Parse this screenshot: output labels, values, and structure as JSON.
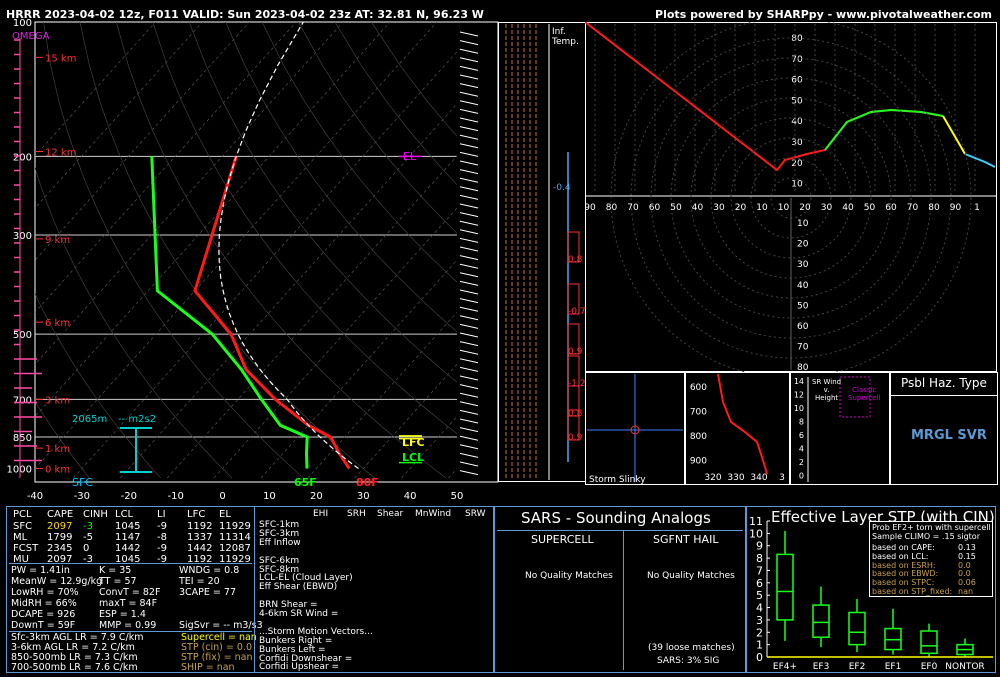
{
  "header": {
    "title": "HRRR 2023-04-02 12z, F011  VALID: Sun 2023-04-02 23z  AT: 32.81 N, 96.23 W",
    "credit": "Plots powered by SHARPpy - www.pivotalweather.com"
  },
  "skewt": {
    "pressure_ticks": [
      "100",
      "200",
      "300",
      "500",
      "700",
      "850",
      "1000"
    ],
    "temp_ticks": [
      "-40",
      "-30",
      "-20",
      "-10",
      "0",
      "10",
      "20",
      "30",
      "40",
      "50"
    ],
    "km_labels": [
      "15 km",
      "12 km",
      "9 km",
      "6 km",
      "3 km",
      "1 km",
      "0 km"
    ],
    "omega": "OMEGA",
    "el": "EL",
    "lfc": "LFC",
    "lcl": "LCL",
    "sfc_dew": "65F",
    "sfc_temp": "80F",
    "sfc": "SFC",
    "eff_height": "2065m",
    "eff_srh": "-- m2s2"
  },
  "inf_temp": {
    "label": "Inf.\nTemp.",
    "values": [
      "-0.4",
      "0.8",
      "-0.7",
      "0.9",
      "-1.2",
      "0.8",
      "0.9"
    ]
  },
  "hodograph_top": {
    "y_ticks": [
      "80",
      "70",
      "60",
      "50",
      "40",
      "30",
      "20",
      "10"
    ]
  },
  "hodograph_mid": {
    "x_ticks": [
      "90",
      "80",
      "70",
      "60",
      "50",
      "40",
      "30",
      "20",
      "10",
      "10",
      "20",
      "30",
      "40",
      "50",
      "60",
      "70",
      "80",
      "90",
      "1"
    ],
    "y_ticks": [
      "10",
      "20",
      "30",
      "40",
      "50",
      "60",
      "70",
      "80"
    ]
  },
  "storm_slinky": {
    "label": "Storm Slinky"
  },
  "theta_panel": {
    "p_ticks": [
      "600",
      "700",
      "800",
      "900"
    ],
    "x_ticks": [
      "320",
      "330",
      "340",
      "3"
    ]
  },
  "sr_wind": {
    "title": "SR Wind\nv.\nHeight",
    "classic": "Classic\nSupercell",
    "y_ticks": [
      "14",
      "12",
      "10",
      "8",
      "6",
      "4",
      "2",
      "0"
    ]
  },
  "hazard": {
    "title": "Psbl Haz. Type",
    "value": "MRGL SVR"
  },
  "parcel_table": {
    "headers": [
      "PCL",
      "CAPE",
      "CINH",
      "LCL",
      "LI",
      "LFC",
      "EL"
    ],
    "rows": [
      [
        "SFC",
        "2097",
        "-3",
        "1045",
        "-9",
        "1192",
        "11929"
      ],
      [
        "ML",
        "1799",
        "-5",
        "1147",
        "-8",
        "1337",
        "11314"
      ],
      [
        "FCST",
        "2345",
        "0",
        "1442",
        "-9",
        "1442",
        "12087"
      ],
      [
        "MU",
        "2097",
        "-3",
        "1045",
        "-9",
        "1192",
        "11929"
      ]
    ]
  },
  "indices": {
    "col1": [
      "PW = 1.41in",
      "MeanW = 12.9g/kg",
      "LowRH = 70%",
      "MidRH = 66%",
      "DCAPE = 926",
      "DownT = 59F"
    ],
    "col2": [
      "K = 35",
      "TT = 57",
      "ConvT = 82F",
      "maxT = 84F",
      "ESP = 1.4",
      "MMP = 0.99"
    ],
    "col3": [
      "WNDG = 0.8",
      "TEI = 20",
      "3CAPE = 77",
      "",
      "",
      "SigSvr = -- m3/s3"
    ]
  },
  "lapse": [
    "Sfc-3km AGL LR = 7.9 C/km",
    "3-6km AGL LR = 7.2 C/km",
    "850-500mb LR = 7.3 C/km",
    "700-500mb LR = 7.6 C/km"
  ],
  "composite": [
    "Supercell = nan",
    "STP (cin) = 0.0",
    "STP (fix) = nan",
    "SHIP = nan"
  ],
  "kinematics": {
    "headers": [
      "EHI",
      "SRH",
      "Shear",
      "MnWind",
      "SRW"
    ],
    "rows": [
      "SFC-1km",
      "SFC-3km",
      "Eff Inflow",
      "",
      "SFC-6km",
      "SFC-8km",
      "LCL-EL (Cloud Layer)",
      "Eff Shear (EBWD)",
      "",
      "BRN Shear =",
      "4-6km SR Wind =",
      "",
      "...Storm Motion Vectors...",
      "Bunkers Right =",
      "Bunkers Left =",
      "Corfidi Downshear =",
      "Corfidi Upshear ="
    ]
  },
  "sars": {
    "title": "SARS - Sounding Analogs",
    "supercell": "SUPERCELL",
    "hail": "SGFNT HAIL",
    "sup_msg": "No Quality Matches",
    "hail_msg": "No Quality Matches",
    "loose": "(39 loose matches)",
    "sig": "SARS: 3% SIG"
  },
  "stp": {
    "title": "Effective Layer STP (with CIN)",
    "prob_title": "Prob EF2+ torn with supercell",
    "climo": "Sample CLIMO = .15 sigtor",
    "lines": [
      {
        "label": "based on CAPE:",
        "val": "0.13"
      },
      {
        "label": "based on LCL:",
        "val": "0.15"
      },
      {
        "label": "based on ESRH:",
        "val": "0.0"
      },
      {
        "label": "based on EBWD:",
        "val": "0.0"
      },
      {
        "label": "based on STPC:",
        "val": "0.06"
      },
      {
        "label": "based on STP_fixed:",
        "val": "nan"
      }
    ],
    "y_ticks": [
      "11",
      "10",
      "9",
      "8",
      "7",
      "6",
      "5",
      "4",
      "3",
      "2",
      "1",
      "0"
    ]
  },
  "chart_data": [
    {
      "type": "line",
      "title": "",
      "series": [
        {
          "name": "temperature",
          "x_degC": [
            27,
            22,
            17,
            10,
            -2,
            -14,
            -24,
            -40,
            -57
          ],
          "p_hpa": [
            1000,
            925,
            850,
            800,
            700,
            600,
            500,
            400,
            200
          ]
        },
        {
          "name": "dewpoint",
          "x_degC": [
            18,
            15,
            12,
            4,
            -5,
            -15,
            -28,
            -48,
            -75
          ],
          "p_hpa": [
            1000,
            925,
            850,
            800,
            700,
            600,
            500,
            400,
            200
          ]
        }
      ],
      "xlim": [
        -40,
        50
      ],
      "ylim_hpa": [
        1000,
        100
      ],
      "log_scale_y": true
    },
    {
      "type": "box",
      "title": "Effective Layer STP (with CIN)",
      "categories": [
        "EF4+",
        "EF3",
        "EF2",
        "EF1",
        "EF0",
        "NONTOR"
      ],
      "boxes": [
        {
          "lo": 1.3,
          "q1": 3.0,
          "med": 5.3,
          "q3": 8.3,
          "hi": 10.2
        },
        {
          "lo": 0.8,
          "q1": 1.6,
          "med": 2.8,
          "q3": 4.2,
          "hi": 5.7
        },
        {
          "lo": 0.4,
          "q1": 1.0,
          "med": 2.0,
          "q3": 3.6,
          "hi": 4.7
        },
        {
          "lo": 0.2,
          "q1": 0.6,
          "med": 1.4,
          "q3": 2.3,
          "hi": 3.9
        },
        {
          "lo": 0.0,
          "q1": 0.3,
          "med": 0.9,
          "q3": 2.1,
          "hi": 2.7
        },
        {
          "lo": 0.0,
          "q1": 0.2,
          "med": 0.6,
          "q3": 1.0,
          "hi": 1.5
        }
      ],
      "ylim": [
        0,
        11
      ],
      "marker_value": 0.0
    }
  ]
}
